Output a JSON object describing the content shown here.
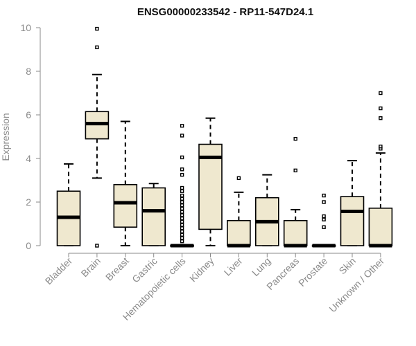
{
  "chart_data": {
    "type": "boxplot",
    "title": "ENSG00000233542 - RP11-547D24.1",
    "xlabel": "",
    "ylabel": "Expression",
    "ylim": [
      0,
      10
    ],
    "yticks": [
      0,
      2,
      4,
      6,
      8,
      10
    ],
    "grid": false,
    "legend": "none",
    "colors": {
      "box_fill": "#efe8cf",
      "box_stroke": "#000000",
      "axis": "#8a8a8a",
      "text": "#8a8a8a"
    },
    "categories": [
      "Bladder",
      "Brain",
      "Breast",
      "Gastric",
      "Hematopoietic cells",
      "Kidney",
      "Liver",
      "Lung",
      "Pancreas",
      "Prostate",
      "Skin",
      "Unknown / Other"
    ],
    "series": [
      {
        "category": "Bladder",
        "q1": 0.0,
        "median": 1.3,
        "q3": 2.5,
        "whisker_low": 0.0,
        "whisker_high": 3.75,
        "outliers": []
      },
      {
        "category": "Brain",
        "q1": 4.9,
        "median": 5.6,
        "q3": 6.15,
        "whisker_low": 3.1,
        "whisker_high": 7.85,
        "outliers": [
          0.0,
          9.1,
          9.95
        ]
      },
      {
        "category": "Breast",
        "q1": 0.85,
        "median": 1.97,
        "q3": 2.8,
        "whisker_low": 0.0,
        "whisker_high": 5.7,
        "outliers": []
      },
      {
        "category": "Gastric",
        "q1": 0.0,
        "median": 1.6,
        "q3": 2.65,
        "whisker_low": 0.0,
        "whisker_high": 2.85,
        "outliers": []
      },
      {
        "category": "Hematopoietic cells",
        "q1": 0.0,
        "median": 0.0,
        "q3": 0.02,
        "whisker_low": 0.0,
        "whisker_high": 0.02,
        "outliers": [
          0.2,
          0.35,
          0.5,
          0.65,
          0.8,
          0.95,
          1.1,
          1.25,
          1.4,
          1.55,
          1.7,
          1.85,
          2.0,
          2.15,
          2.3,
          2.5,
          2.65,
          3.25,
          3.5,
          4.05,
          5.05,
          5.5
        ]
      },
      {
        "category": "Kidney",
        "q1": 0.75,
        "median": 4.05,
        "q3": 4.65,
        "whisker_low": 0.0,
        "whisker_high": 5.85,
        "outliers": []
      },
      {
        "category": "Liver",
        "q1": 0.0,
        "median": 0.0,
        "q3": 1.15,
        "whisker_low": 0.0,
        "whisker_high": 2.45,
        "outliers": [
          3.1
        ]
      },
      {
        "category": "Lung",
        "q1": 0.0,
        "median": 1.1,
        "q3": 2.2,
        "whisker_low": 0.0,
        "whisker_high": 3.25,
        "outliers": []
      },
      {
        "category": "Pancreas",
        "q1": 0.0,
        "median": 0.0,
        "q3": 1.15,
        "whisker_low": 0.0,
        "whisker_high": 1.65,
        "outliers": [
          3.45,
          4.9
        ]
      },
      {
        "category": "Prostate",
        "q1": 0.0,
        "median": 0.0,
        "q3": 0.02,
        "whisker_low": 0.0,
        "whisker_high": 0.02,
        "outliers": [
          0.85,
          1.2,
          1.35,
          2.0,
          2.3
        ]
      },
      {
        "category": "Skin",
        "q1": 0.0,
        "median": 1.57,
        "q3": 2.25,
        "whisker_low": 0.0,
        "whisker_high": 3.9,
        "outliers": []
      },
      {
        "category": "Unknown / Other",
        "q1": 0.0,
        "median": 0.0,
        "q3": 1.72,
        "whisker_low": 0.0,
        "whisker_high": 4.25,
        "outliers": [
          4.45,
          4.55,
          5.85,
          6.3,
          7.0
        ]
      }
    ]
  }
}
